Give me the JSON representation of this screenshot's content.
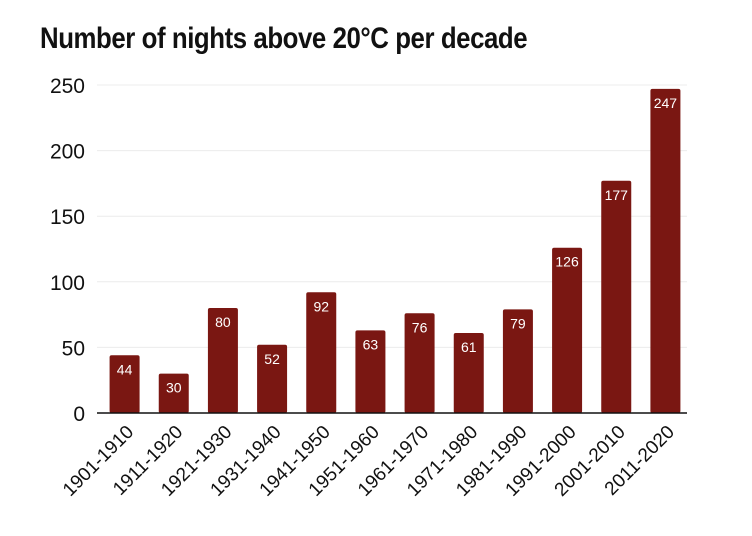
{
  "chart_data": {
    "type": "bar",
    "title": "Number of nights above 20°C per decade",
    "xlabel": "",
    "ylabel": "",
    "categories": [
      "1901-1910",
      "1911-1920",
      "1921-1930",
      "1931-1940",
      "1941-1950",
      "1951-1960",
      "1961-1970",
      "1971-1980",
      "1981-1990",
      "1991-2000",
      "2001-2010",
      "2011-2020"
    ],
    "values": [
      44,
      30,
      80,
      52,
      92,
      63,
      76,
      61,
      79,
      126,
      177,
      247
    ],
    "ylim": [
      0,
      250
    ],
    "yticks": [
      0,
      50,
      100,
      150,
      200,
      250
    ],
    "grid": true,
    "bar_color": "#7a1712",
    "data_label_color": "#ffffff"
  }
}
